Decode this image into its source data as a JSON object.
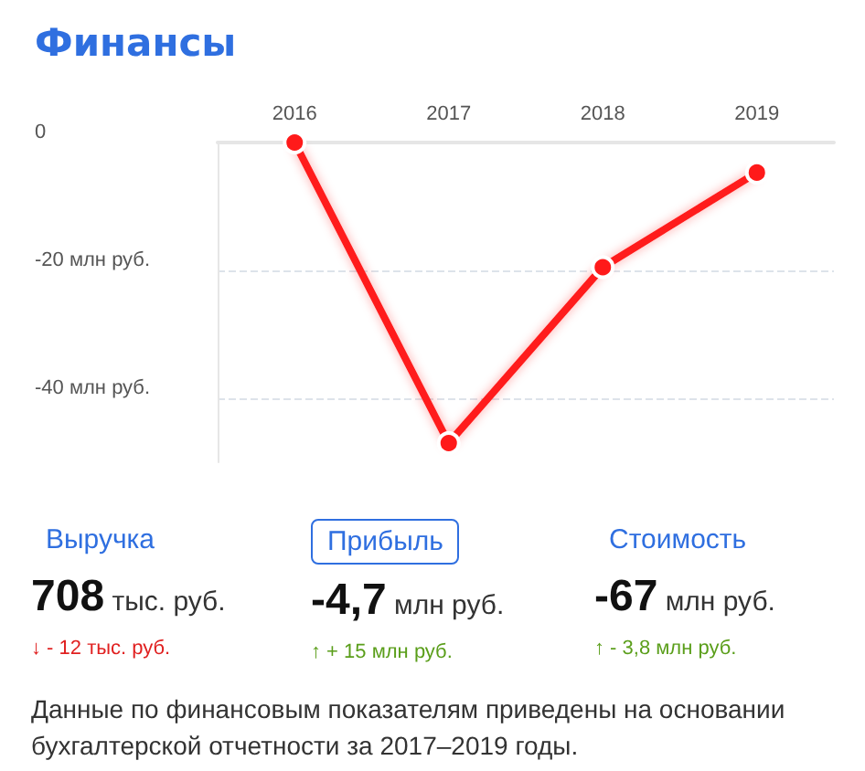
{
  "chart_data": {
    "type": "line",
    "title": "Финансы",
    "categories": [
      "2016",
      "2017",
      "2018",
      "2019"
    ],
    "series": [
      {
        "color": "#ff1a1a",
        "values": [
          0,
          -47,
          -19.5,
          -4.7
        ]
      }
    ],
    "ylim": [
      -50,
      0
    ],
    "yticks": [
      {
        "value": 0,
        "label": "0"
      },
      {
        "value": -20,
        "label": "-20 млн руб."
      },
      {
        "value": -40,
        "label": "-40 млн руб."
      }
    ],
    "grid": "y",
    "marker": "circle",
    "line_style": "solid",
    "annotations": [
      "Выручка",
      "708 тыс. руб.",
      "↓ - 12 тыс. руб.",
      "Прибыль",
      "-4,7 млн руб.",
      "↑ + 15 млн руб.",
      "Стоимость",
      "-67 млн руб.",
      "↑ - 3,8 млн руб.",
      "Данные по финансовым показателям приведены на основании бухгалтерской отчетности за 2017–2019 годы."
    ]
  }
}
